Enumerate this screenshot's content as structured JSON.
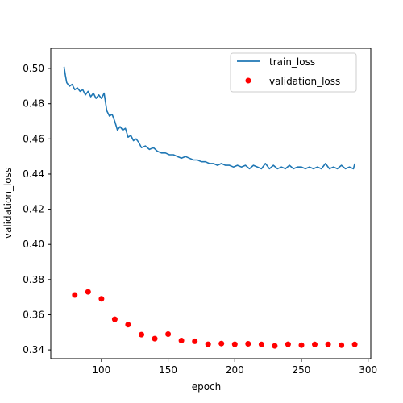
{
  "chart_data": {
    "type": "line",
    "title": "",
    "xlabel": "epoch",
    "ylabel": "validation_loss",
    "xlim": [
      62,
      302
    ],
    "ylim": [
      0.335,
      0.5115
    ],
    "x_ticks": [
      100,
      150,
      200,
      250,
      300
    ],
    "y_ticks": [
      0.34,
      0.36,
      0.38,
      0.4,
      0.42,
      0.44,
      0.46,
      0.48,
      0.5
    ],
    "x_tick_labels": [
      "100",
      "150",
      "200",
      "250",
      "300"
    ],
    "y_tick_labels": [
      "0.34",
      "0.36",
      "0.38",
      "0.40",
      "0.42",
      "0.44",
      "0.46",
      "0.48",
      "0.50"
    ],
    "grid": false,
    "legend_position": "top-right",
    "series": [
      {
        "name": "train_loss",
        "kind": "line",
        "color": "#1f77b4",
        "x": [
          72,
          73,
          74,
          75,
          76,
          78,
          80,
          82,
          84,
          86,
          88,
          90,
          92,
          94,
          96,
          98,
          100,
          102,
          104,
          106,
          108,
          110,
          112,
          114,
          116,
          118,
          120,
          122,
          124,
          126,
          128,
          130,
          133,
          136,
          139,
          142,
          145,
          148,
          151,
          154,
          157,
          160,
          163,
          166,
          169,
          172,
          175,
          178,
          181,
          184,
          187,
          190,
          193,
          196,
          199,
          202,
          205,
          208,
          211,
          214,
          217,
          220,
          223,
          226,
          229,
          232,
          235,
          238,
          241,
          244,
          247,
          250,
          253,
          256,
          259,
          262,
          265,
          268,
          271,
          274,
          277,
          280,
          283,
          286,
          289,
          290
        ],
        "y": [
          0.501,
          0.496,
          0.492,
          0.491,
          0.49,
          0.491,
          0.488,
          0.489,
          0.487,
          0.488,
          0.485,
          0.487,
          0.484,
          0.486,
          0.483,
          0.485,
          0.483,
          0.486,
          0.476,
          0.473,
          0.474,
          0.47,
          0.465,
          0.467,
          0.465,
          0.466,
          0.461,
          0.462,
          0.459,
          0.46,
          0.458,
          0.455,
          0.456,
          0.454,
          0.455,
          0.453,
          0.452,
          0.452,
          0.451,
          0.451,
          0.45,
          0.449,
          0.45,
          0.449,
          0.448,
          0.448,
          0.447,
          0.447,
          0.446,
          0.446,
          0.445,
          0.446,
          0.445,
          0.445,
          0.444,
          0.445,
          0.444,
          0.445,
          0.443,
          0.445,
          0.444,
          0.443,
          0.446,
          0.443,
          0.445,
          0.443,
          0.444,
          0.443,
          0.445,
          0.443,
          0.444,
          0.444,
          0.443,
          0.444,
          0.443,
          0.444,
          0.443,
          0.446,
          0.443,
          0.444,
          0.443,
          0.445,
          0.443,
          0.444,
          0.443,
          0.446
        ]
      },
      {
        "name": "validation_loss",
        "kind": "scatter",
        "color": "#ff0000",
        "x": [
          80,
          90,
          100,
          110,
          120,
          130,
          140,
          150,
          160,
          170,
          180,
          190,
          200,
          210,
          220,
          230,
          240,
          250,
          260,
          270,
          280,
          290
        ],
        "y": [
          0.3712,
          0.373,
          0.369,
          0.3574,
          0.3544,
          0.3487,
          0.3464,
          0.349,
          0.3453,
          0.3449,
          0.3432,
          0.3436,
          0.3432,
          0.3435,
          0.3431,
          0.3423,
          0.3432,
          0.3427,
          0.3431,
          0.3431,
          0.3427,
          0.3431
        ]
      }
    ]
  }
}
